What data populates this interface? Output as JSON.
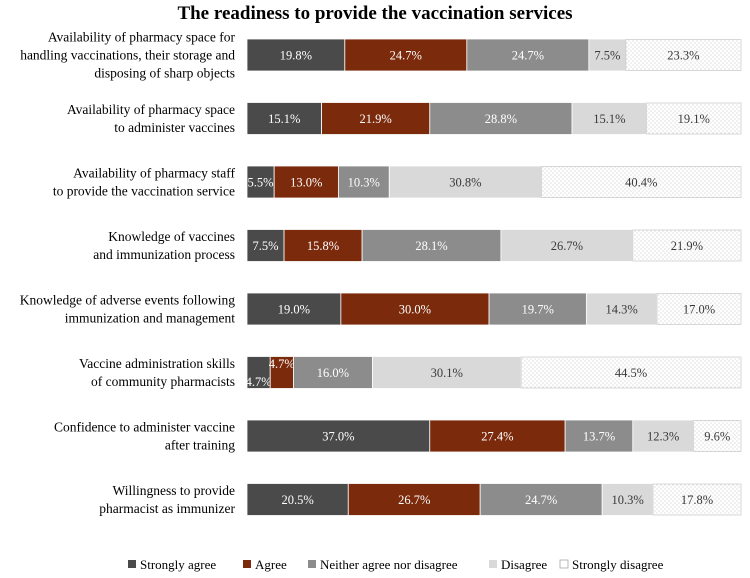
{
  "chart_data": {
    "type": "bar",
    "orientation": "horizontal",
    "stacked": "100%",
    "title": "The readiness to provide the vaccination services",
    "xlabel": "",
    "ylabel": "",
    "xlim": [
      0,
      100
    ],
    "grid": false,
    "legend_position": "bottom",
    "categories": [
      [
        "Availability of pharmacy space for",
        "handling vaccinations, their storage and",
        "disposing of sharp objects"
      ],
      [
        "Availability of pharmacy space",
        "to administer vaccines"
      ],
      [
        "Availability of pharmacy staff",
        "to provide the vaccination service"
      ],
      [
        "Knowledge of vaccines",
        "and immunization process"
      ],
      [
        "Knowledge of adverse events following",
        "immunization and management"
      ],
      [
        "Vaccine administration skills",
        "of community pharmacists"
      ],
      [
        "Confidence to administer vaccine",
        "after training"
      ],
      [
        "Willingness to provide",
        "pharmacist as immunizer"
      ]
    ],
    "series": [
      {
        "name": "Strongly agree",
        "color": "#4a4a4a",
        "label_color": "#ffffff",
        "pattern": "solid",
        "values": [
          19.8,
          15.1,
          5.5,
          7.5,
          19.0,
          4.7,
          37.0,
          20.5
        ],
        "labels": [
          "19.8%",
          "15.1%",
          "5.5%",
          "7.5%",
          "19.0%",
          "4.7%",
          "37.0%",
          "20.5%"
        ]
      },
      {
        "name": "Agree",
        "color": "#7b2a0c",
        "label_color": "#ffffff",
        "pattern": "solid",
        "values": [
          24.7,
          21.9,
          13.0,
          15.8,
          30.0,
          4.7,
          27.4,
          26.7
        ],
        "labels": [
          "24.7%",
          "21.9%",
          "13.0%",
          "15.8%",
          "30.0%",
          "4.7%",
          "27.4%",
          "26.7%"
        ]
      },
      {
        "name": "Neither agree nor disagree",
        "color": "#8c8c8c",
        "label_color": "#ffffff",
        "pattern": "solid",
        "values": [
          24.7,
          28.8,
          10.3,
          28.1,
          19.7,
          16.0,
          13.7,
          24.7
        ],
        "labels": [
          "24.7%",
          "28.8%",
          "10.3%",
          "28.1%",
          "19.7%",
          "16.0%",
          "13.7%",
          "24.7%"
        ]
      },
      {
        "name": "Disagree",
        "color": "#d9d9d9",
        "label_color": "#3a3a3a",
        "pattern": "solid",
        "values": [
          7.5,
          15.1,
          30.8,
          26.7,
          14.3,
          30.1,
          12.3,
          10.3
        ],
        "labels": [
          "7.5%",
          "15.1%",
          "30.8%",
          "26.7%",
          "14.3%",
          "30.1%",
          "12.3%",
          "10.3%"
        ]
      },
      {
        "name": "Strongly disagree",
        "color": "#ffffff",
        "label_color": "#3a3a3a",
        "pattern": "dotted",
        "values": [
          23.3,
          19.1,
          40.4,
          21.9,
          17.0,
          44.5,
          9.6,
          17.8
        ],
        "labels": [
          "23.3%",
          "19.1%",
          "40.4%",
          "21.9%",
          "17.0%",
          "44.5%",
          "9.6%",
          "17.8%"
        ]
      }
    ]
  }
}
